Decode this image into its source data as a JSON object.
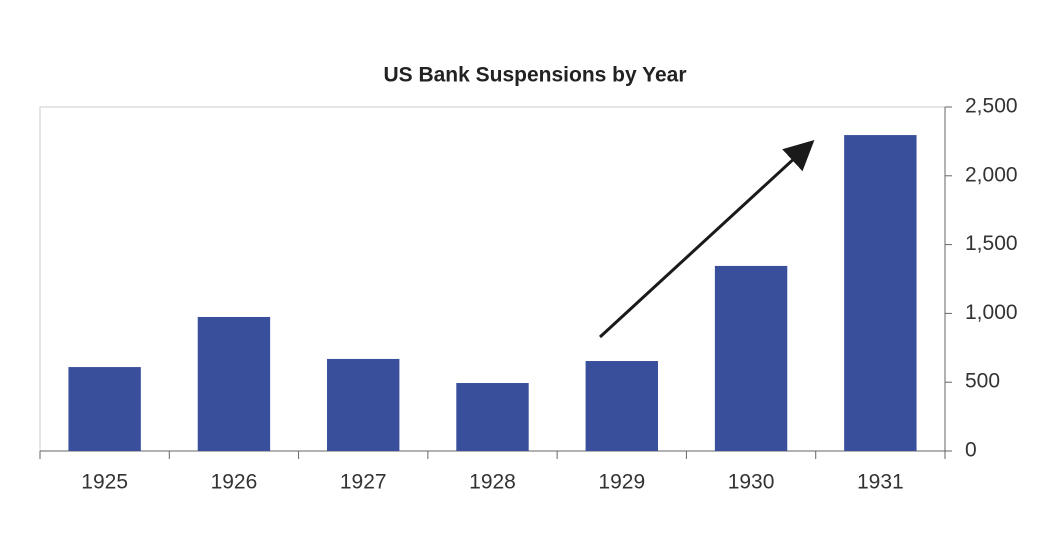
{
  "chart_data": {
    "type": "bar",
    "title": "US Bank Suspensions by Year",
    "categories": [
      "1925",
      "1926",
      "1927",
      "1928",
      "1929",
      "1930",
      "1931"
    ],
    "values": [
      610,
      974,
      669,
      494,
      654,
      1345,
      2296
    ],
    "color": "#3a4f9c",
    "ylim": [
      0,
      2500
    ],
    "yticks": [
      0,
      500,
      {
        "value": 1000,
        "label": "1,000"
      },
      {
        "value": 1500,
        "label": "1,500"
      },
      {
        "value": 2000,
        "label": "2,000"
      },
      {
        "value": 2500,
        "label": "2,500"
      }
    ]
  }
}
